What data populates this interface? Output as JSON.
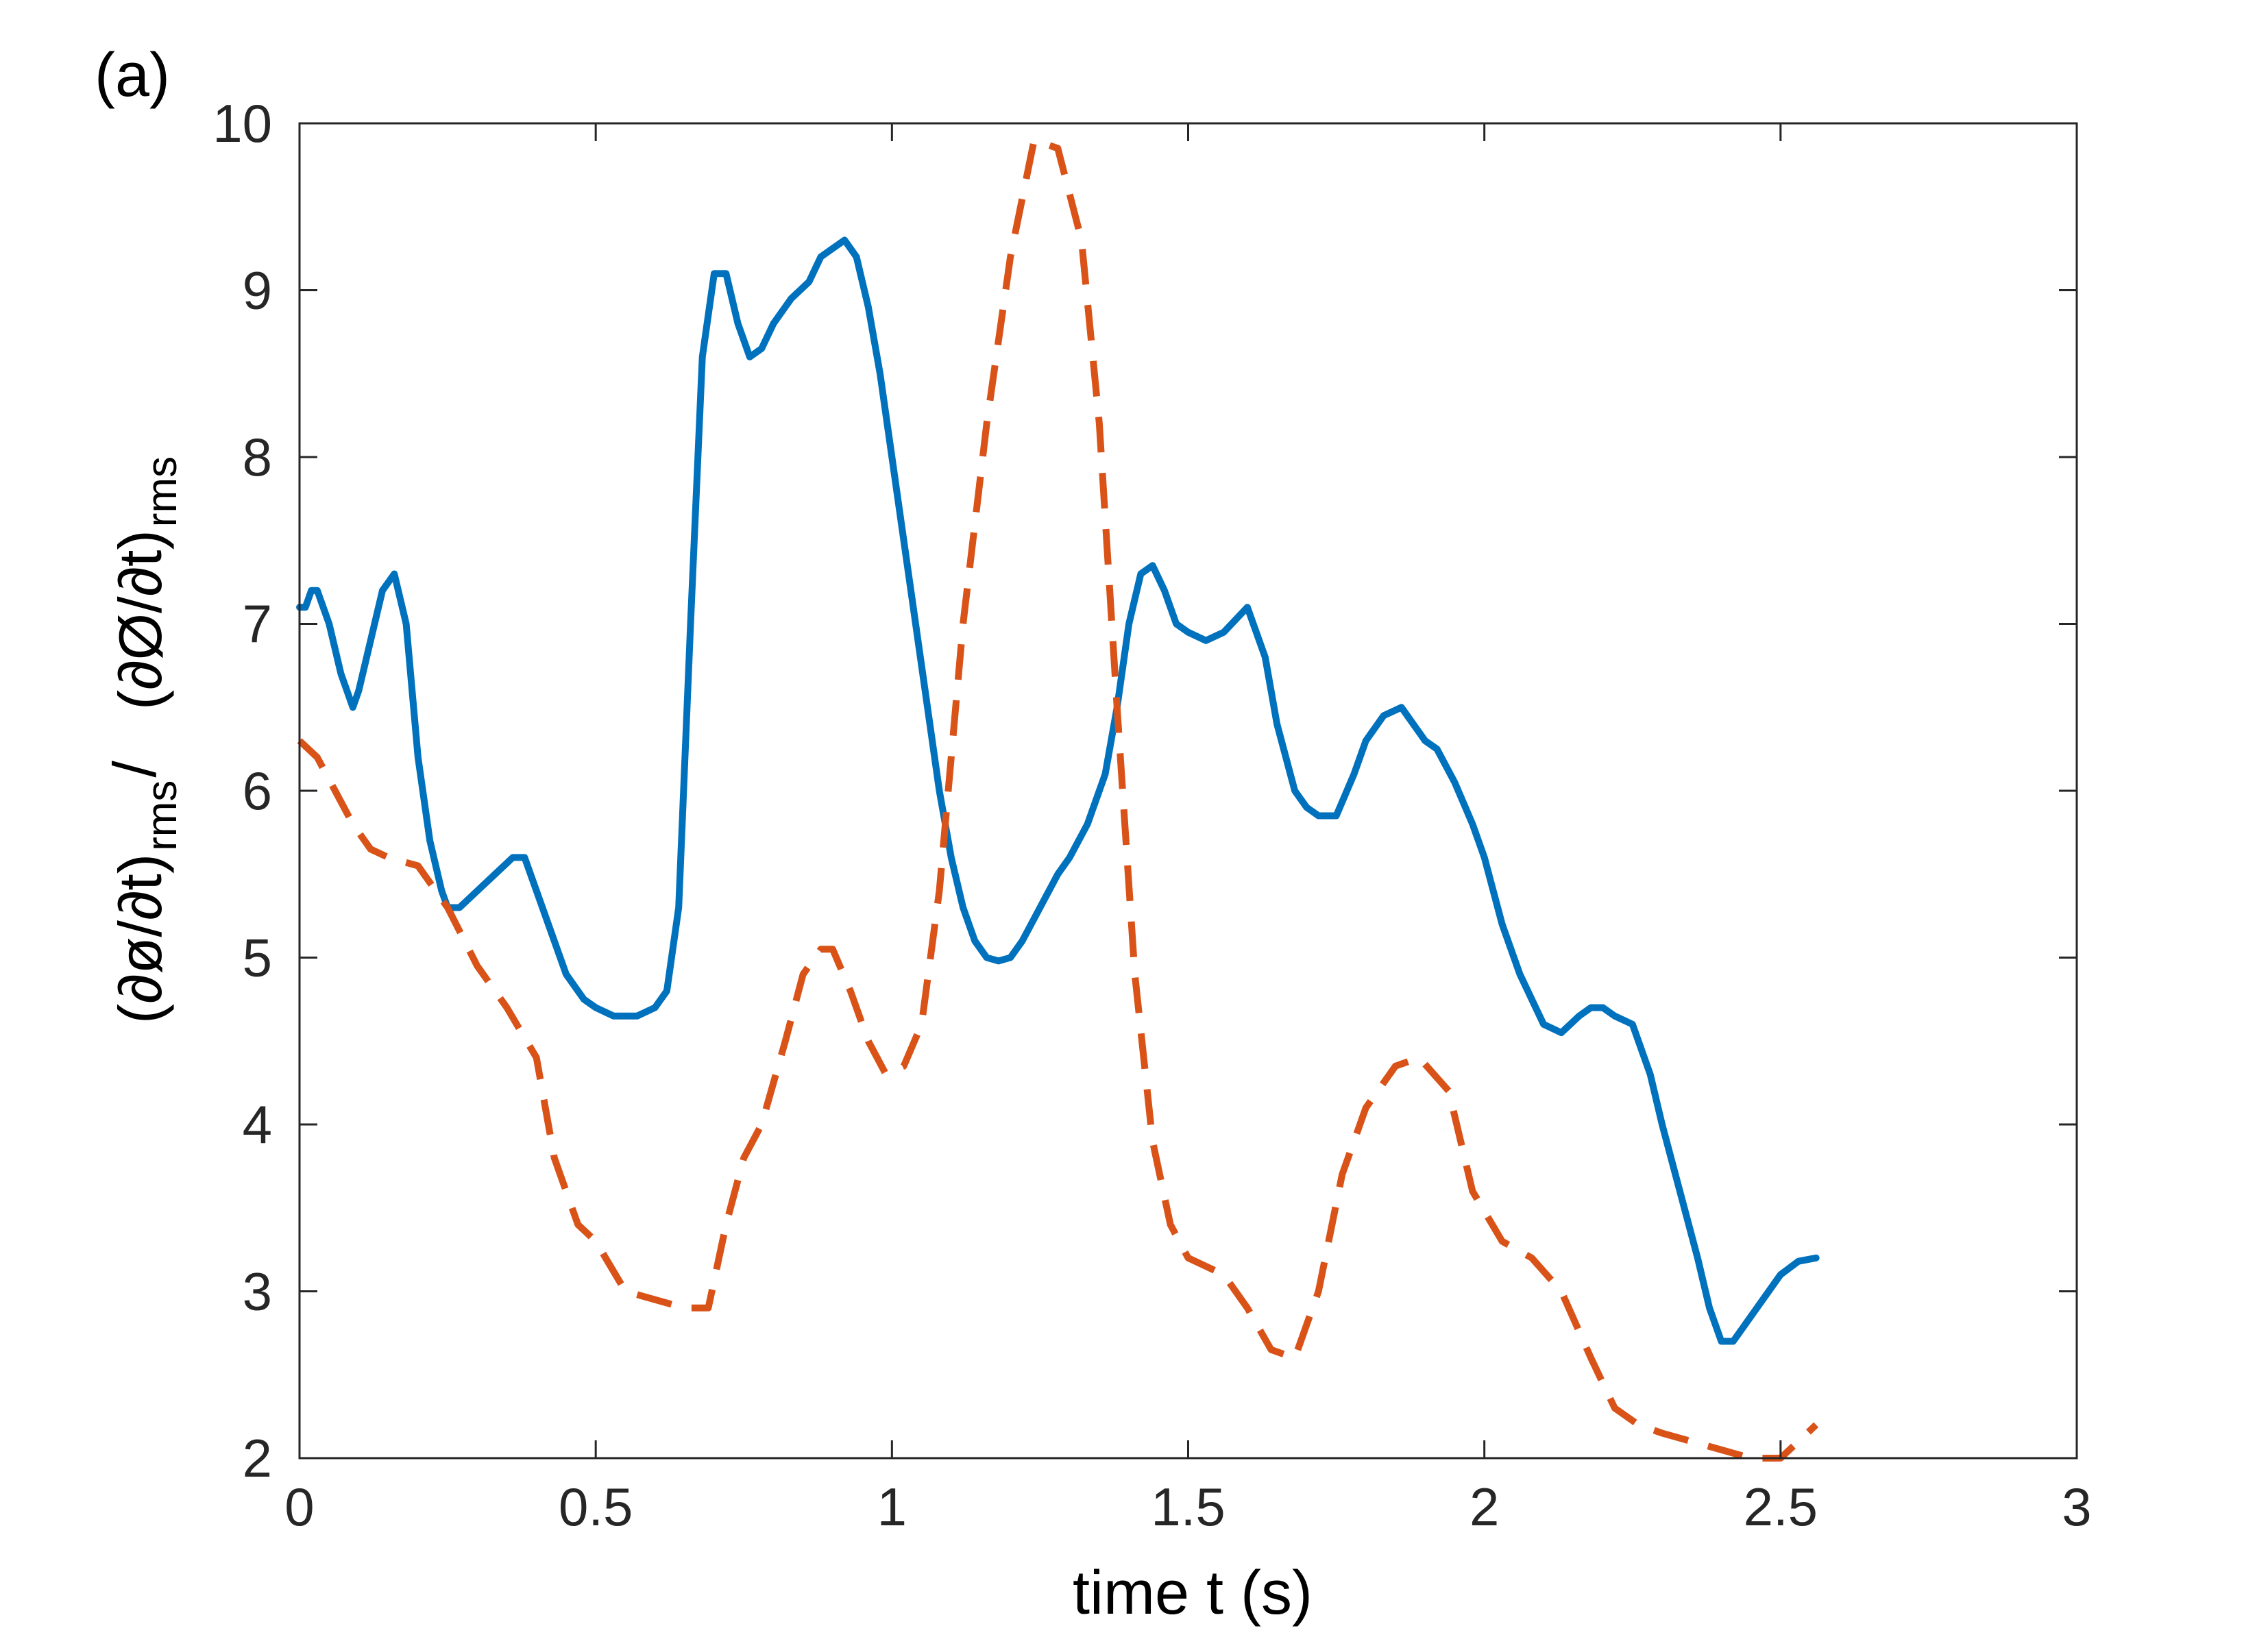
{
  "chart_data": {
    "type": "line",
    "panel_label": "(a)",
    "xlabel": "time  t (s)",
    "ylabel_parts": {
      "num1": "(∂ø/∂t)",
      "sub1": "rms",
      "slash": "/",
      "num2": "(∂Ø/∂t)",
      "sub2": "rms"
    },
    "xlim": [
      0,
      3
    ],
    "ylim": [
      2,
      10
    ],
    "xticks": [
      "0",
      "0.5",
      "1",
      "1.5",
      "2",
      "2.5",
      "3"
    ],
    "yticks": [
      "2",
      "3",
      "4",
      "5",
      "6",
      "7",
      "8",
      "9",
      "10"
    ],
    "grid": false,
    "colors": {
      "solid": "#0072BD",
      "dashed": "#D95319",
      "axis": "#262626"
    },
    "series": [
      {
        "style": "solid",
        "color": "#0072BD",
        "x": [
          0.0,
          0.01,
          0.02,
          0.03,
          0.05,
          0.07,
          0.09,
          0.1,
          0.12,
          0.14,
          0.16,
          0.18,
          0.2,
          0.22,
          0.24,
          0.25,
          0.27,
          0.3,
          0.33,
          0.36,
          0.38,
          0.4,
          0.43,
          0.45,
          0.48,
          0.5,
          0.53,
          0.55,
          0.57,
          0.6,
          0.62,
          0.64,
          0.66,
          0.68,
          0.7,
          0.72,
          0.74,
          0.76,
          0.78,
          0.8,
          0.83,
          0.86,
          0.88,
          0.9,
          0.92,
          0.94,
          0.96,
          0.98,
          1.0,
          1.02,
          1.04,
          1.06,
          1.08,
          1.1,
          1.12,
          1.14,
          1.16,
          1.18,
          1.2,
          1.22,
          1.25,
          1.28,
          1.3,
          1.33,
          1.36,
          1.38,
          1.4,
          1.42,
          1.44,
          1.46,
          1.48,
          1.5,
          1.53,
          1.56,
          1.6,
          1.63,
          1.65,
          1.68,
          1.7,
          1.72,
          1.75,
          1.78,
          1.8,
          1.83,
          1.86,
          1.88,
          1.9,
          1.92,
          1.95,
          1.98,
          2.0,
          2.03,
          2.06,
          2.1,
          2.13,
          2.16,
          2.18,
          2.2,
          2.22,
          2.25,
          2.28,
          2.3,
          2.33,
          2.36,
          2.38,
          2.4,
          2.42,
          2.44,
          2.47,
          2.5,
          2.53,
          2.56
        ],
        "y": [
          7.1,
          7.1,
          7.2,
          7.2,
          7.0,
          6.7,
          6.5,
          6.6,
          6.9,
          7.2,
          7.3,
          7.0,
          6.2,
          5.7,
          5.4,
          5.3,
          5.3,
          5.4,
          5.5,
          5.6,
          5.6,
          5.4,
          5.1,
          4.9,
          4.75,
          4.7,
          4.65,
          4.65,
          4.65,
          4.7,
          4.8,
          5.3,
          7.0,
          8.6,
          9.1,
          9.1,
          8.8,
          8.6,
          8.65,
          8.8,
          8.95,
          9.05,
          9.2,
          9.25,
          9.3,
          9.2,
          8.9,
          8.5,
          8.0,
          7.5,
          7.0,
          6.5,
          6.0,
          5.6,
          5.3,
          5.1,
          5.0,
          4.98,
          5.0,
          5.1,
          5.3,
          5.5,
          5.6,
          5.8,
          6.1,
          6.5,
          7.0,
          7.3,
          7.35,
          7.2,
          7.0,
          6.95,
          6.9,
          6.95,
          7.1,
          6.8,
          6.4,
          6.0,
          5.9,
          5.85,
          5.85,
          6.1,
          6.3,
          6.45,
          6.5,
          6.4,
          6.3,
          6.25,
          6.05,
          5.8,
          5.6,
          5.2,
          4.9,
          4.6,
          4.55,
          4.65,
          4.7,
          4.7,
          4.65,
          4.6,
          4.3,
          4.0,
          3.6,
          3.2,
          2.9,
          2.7,
          2.7,
          2.8,
          2.95,
          3.1,
          3.18,
          3.2
        ]
      },
      {
        "style": "dashed",
        "color": "#D95319",
        "x": [
          0.0,
          0.03,
          0.06,
          0.09,
          0.12,
          0.15,
          0.2,
          0.25,
          0.3,
          0.35,
          0.4,
          0.43,
          0.47,
          0.5,
          0.55,
          0.6,
          0.65,
          0.69,
          0.72,
          0.75,
          0.78,
          0.82,
          0.85,
          0.88,
          0.9,
          0.93,
          0.96,
          0.99,
          1.02,
          1.05,
          1.08,
          1.12,
          1.16,
          1.2,
          1.24,
          1.28,
          1.32,
          1.35,
          1.38,
          1.41,
          1.44,
          1.47,
          1.5,
          1.53,
          1.56,
          1.6,
          1.64,
          1.68,
          1.72,
          1.76,
          1.8,
          1.85,
          1.89,
          1.94,
          1.98,
          2.03,
          2.08,
          2.13,
          2.18,
          2.22,
          2.26,
          2.3,
          2.35,
          2.4,
          2.45,
          2.5,
          2.56
        ],
        "y": [
          6.3,
          6.2,
          6.0,
          5.8,
          5.65,
          5.6,
          5.55,
          5.3,
          4.95,
          4.7,
          4.4,
          3.8,
          3.4,
          3.3,
          3.0,
          2.95,
          2.9,
          2.9,
          3.4,
          3.8,
          4.0,
          4.5,
          4.9,
          5.05,
          5.05,
          4.8,
          4.5,
          4.3,
          4.35,
          4.6,
          5.4,
          7.0,
          8.2,
          9.2,
          9.9,
          9.85,
          9.3,
          8.2,
          6.5,
          4.9,
          3.9,
          3.4,
          3.2,
          3.15,
          3.1,
          2.9,
          2.65,
          2.6,
          3.0,
          3.7,
          4.1,
          4.35,
          4.4,
          4.2,
          3.6,
          3.3,
          3.2,
          3.0,
          2.6,
          2.3,
          2.2,
          2.15,
          2.1,
          2.05,
          2.0,
          2.0,
          2.2
        ]
      }
    ]
  }
}
